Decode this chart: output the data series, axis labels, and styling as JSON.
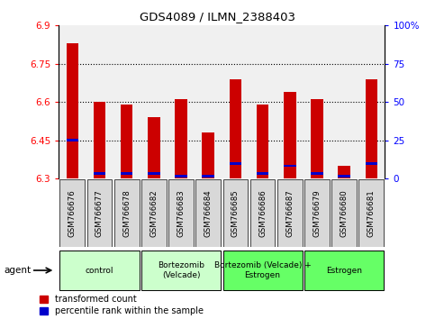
{
  "title": "GDS4089 / ILMN_2388403",
  "samples": [
    "GSM766676",
    "GSM766677",
    "GSM766678",
    "GSM766682",
    "GSM766683",
    "GSM766684",
    "GSM766685",
    "GSM766686",
    "GSM766687",
    "GSM766679",
    "GSM766680",
    "GSM766681"
  ],
  "red_values": [
    6.83,
    6.6,
    6.59,
    6.54,
    6.61,
    6.48,
    6.69,
    6.59,
    6.64,
    6.61,
    6.35,
    6.69
  ],
  "blue_values": [
    6.45,
    6.32,
    6.32,
    6.32,
    6.31,
    6.31,
    6.36,
    6.32,
    6.35,
    6.32,
    6.31,
    6.36
  ],
  "ymin": 6.3,
  "ymax": 6.9,
  "yticks": [
    6.3,
    6.45,
    6.6,
    6.75,
    6.9
  ],
  "ytick_labels": [
    "6.3",
    "6.45",
    "6.6",
    "6.75",
    "6.9"
  ],
  "y2min": 0,
  "y2max": 100,
  "y2ticks": [
    0,
    25,
    50,
    75,
    100
  ],
  "y2tick_labels": [
    "0",
    "25",
    "50",
    "75",
    "100%"
  ],
  "groups": [
    {
      "label": "control",
      "start": 0,
      "end": 3,
      "color": "#ccffcc"
    },
    {
      "label": "Bortezomib\n(Velcade)",
      "start": 3,
      "end": 6,
      "color": "#ccffcc"
    },
    {
      "label": "Bortezomib (Velcade) +\nEstrogen",
      "start": 6,
      "end": 9,
      "color": "#66ff66"
    },
    {
      "label": "Estrogen",
      "start": 9,
      "end": 12,
      "color": "#66ff66"
    }
  ],
  "agent_label": "agent",
  "legend_red": "transformed count",
  "legend_blue": "percentile rank within the sample",
  "bar_width": 0.45,
  "red_color": "#cc0000",
  "blue_color": "#0000cc",
  "plot_bgcolor": "#f0f0f0"
}
